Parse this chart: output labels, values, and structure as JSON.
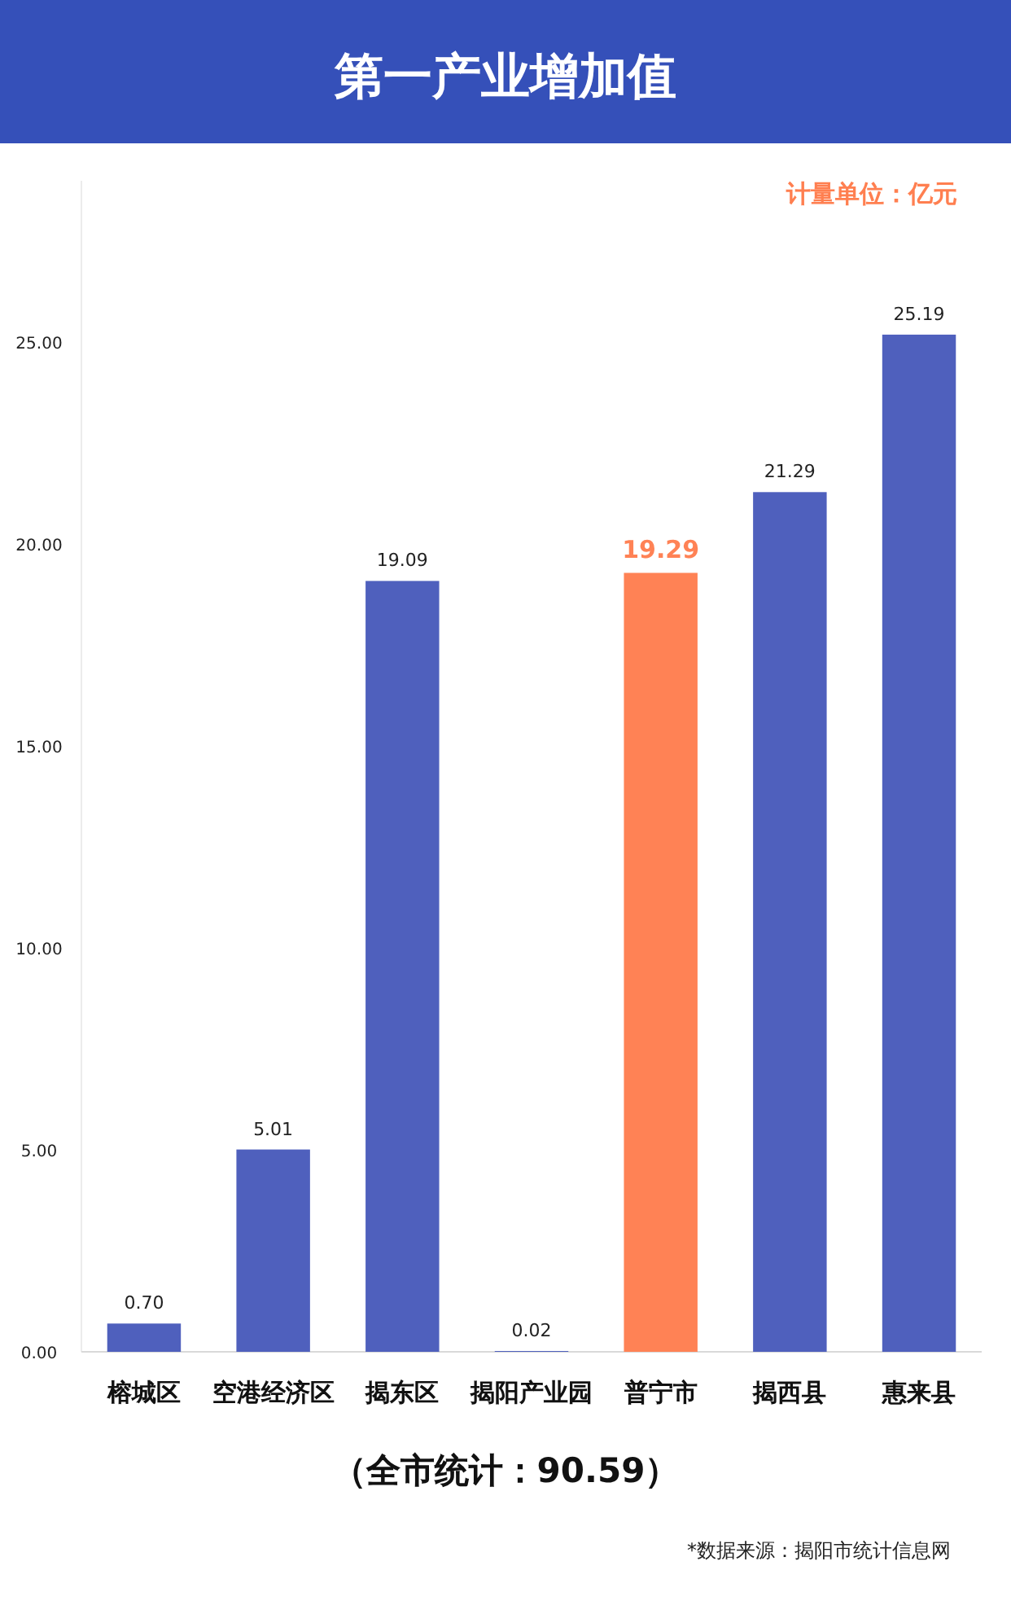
{
  "chart_data": {
    "type": "bar",
    "title": "第一产业增加值",
    "categories": [
      "榕城区",
      "空港经济区",
      "揭东区",
      "揭阳产业园",
      "普宁市",
      "揭西县",
      "惠来县"
    ],
    "values": [
      0.7,
      5.01,
      19.09,
      0.02,
      19.29,
      21.29,
      25.19
    ],
    "value_labels": [
      "0.70",
      "5.01",
      "19.09",
      "0.02",
      "19.29",
      "21.29",
      "25.19"
    ],
    "colors": [
      "#4f60bd",
      "#4f60bd",
      "#4f60bd",
      "#4f60bd",
      "#ff8255",
      "#4f60bd",
      "#4f60bd"
    ],
    "ylim": [
      0,
      29
    ],
    "yticks": [
      {
        "value": 0,
        "label": "0.00"
      },
      {
        "value": 5,
        "label": "5.00"
      },
      {
        "value": 10,
        "label": "10.00"
      },
      {
        "value": 15,
        "label": "15.00"
      },
      {
        "value": 20,
        "label": "20.00"
      },
      {
        "value": 25,
        "label": "25.00"
      }
    ],
    "annotations": [
      "计量单位：亿元",
      "（全市统计：90.59）",
      "*数据来源：揭阳市统计信息网"
    ]
  }
}
